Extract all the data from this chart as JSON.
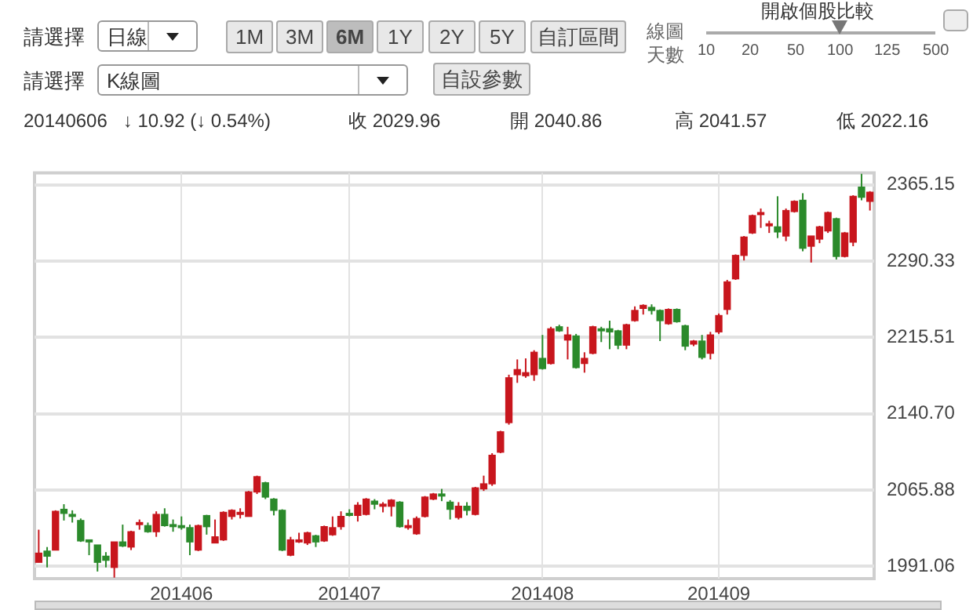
{
  "chart_data": {
    "type": "candlestick",
    "categories": [
      null,
      null,
      null,
      null,
      null,
      null,
      null,
      null,
      null,
      null,
      null,
      null,
      null,
      null,
      null,
      null,
      null,
      "201406",
      null,
      null,
      null,
      null,
      null,
      null,
      null,
      null,
      null,
      null,
      null,
      null,
      null,
      null,
      null,
      null,
      null,
      null,
      null,
      "201407",
      null,
      null,
      null,
      null,
      null,
      null,
      null,
      null,
      null,
      null,
      null,
      null,
      null,
      null,
      null,
      null,
      null,
      null,
      null,
      null,
      null,
      null,
      "201408",
      null,
      null,
      null,
      null,
      null,
      null,
      null,
      null,
      null,
      null,
      null,
      null,
      null,
      null,
      null,
      null,
      null,
      null,
      null,
      null,
      "201409",
      null,
      null,
      null,
      null,
      null,
      null,
      null,
      null,
      null,
      null,
      null,
      null,
      null,
      null,
      null,
      null,
      null,
      null
    ],
    "ohlc": [
      [
        1995,
        2027,
        1995,
        2004
      ],
      [
        2006,
        2010,
        1990,
        2001
      ],
      [
        2007,
        2046,
        2007,
        2045
      ],
      [
        2047,
        2052,
        2036,
        2043
      ],
      [
        2042,
        2046,
        2034,
        2040
      ],
      [
        2036,
        2038,
        2015,
        2016
      ],
      [
        2017,
        2017,
        2002,
        2015
      ],
      [
        2012,
        2012,
        1986,
        1995
      ],
      [
        2001,
        2005,
        1990,
        1997
      ],
      [
        1990,
        2015,
        1980,
        2015
      ],
      [
        2015,
        2032,
        2010,
        2011
      ],
      [
        2010,
        2026,
        2007,
        2025
      ],
      [
        2032,
        2037,
        2027,
        2034
      ],
      [
        2031,
        2034,
        2024,
        2025
      ],
      [
        2025,
        2045,
        2020,
        2042
      ],
      [
        2042,
        2048,
        2030,
        2031
      ],
      [
        2032,
        2037,
        2025,
        2030
      ],
      [
        2031,
        2040,
        2027,
        2029
      ],
      [
        2029,
        2032,
        2002,
        2015
      ],
      [
        2007,
        2032,
        2006,
        2031
      ],
      [
        2040.86,
        2041.57,
        2022.16,
        2029.96
      ],
      [
        2014,
        2037,
        2014,
        2020
      ],
      [
        2017,
        2045,
        2016,
        2044
      ],
      [
        2040,
        2047,
        2037,
        2046
      ],
      [
        2042,
        2048,
        2038,
        2044
      ],
      [
        2040,
        2065,
        2040,
        2064
      ],
      [
        2064,
        2080,
        2062,
        2079
      ],
      [
        2073,
        2074,
        2057,
        2059
      ],
      [
        2057,
        2058,
        2041,
        2046
      ],
      [
        2046,
        2047,
        2006,
        2007
      ],
      [
        2002,
        2020,
        2001,
        2017
      ],
      [
        2015,
        2024,
        2014,
        2017
      ],
      [
        2014,
        2025,
        2012,
        2024
      ],
      [
        2021,
        2022,
        2010,
        2015
      ],
      [
        2016,
        2031,
        2015,
        2030
      ],
      [
        2022,
        2040,
        2021,
        2029
      ],
      [
        2030,
        2045,
        2027,
        2040
      ],
      [
        2043,
        2047,
        2040,
        2041
      ],
      [
        2041,
        2054,
        2035,
        2051
      ],
      [
        2042,
        2058,
        2041,
        2057
      ],
      [
        2055,
        2057,
        2047,
        2052
      ],
      [
        2050,
        2054,
        2044,
        2052
      ],
      [
        2050,
        2057,
        2040,
        2056
      ],
      [
        2054,
        2055,
        2029,
        2030
      ],
      [
        2029,
        2037,
        2027,
        2031
      ],
      [
        2023,
        2040,
        2022,
        2038
      ],
      [
        2040,
        2060,
        2039,
        2059
      ],
      [
        2057,
        2063,
        2056,
        2062
      ],
      [
        2062,
        2067,
        2055,
        2060
      ],
      [
        2054,
        2056,
        2037,
        2047
      ],
      [
        2039,
        2054,
        2037,
        2050
      ],
      [
        2050,
        2054,
        2041,
        2046
      ],
      [
        2042,
        2069,
        2041,
        2068
      ],
      [
        2067,
        2080,
        2065,
        2072
      ],
      [
        2072,
        2102,
        2070,
        2100
      ],
      [
        2103,
        2124,
        2102,
        2123
      ],
      [
        2132,
        2179,
        2130,
        2176
      ],
      [
        2179,
        2194,
        2171,
        2184
      ],
      [
        2178,
        2195,
        2176,
        2181
      ],
      [
        2179,
        2203,
        2173,
        2201
      ],
      [
        2195,
        2218,
        2184,
        2185
      ],
      [
        2190,
        2226,
        2189,
        2224
      ],
      [
        2226,
        2228,
        2221,
        2222
      ],
      [
        2213,
        2226,
        2194,
        2218
      ],
      [
        2217,
        2219,
        2185,
        2186
      ],
      [
        2190,
        2201,
        2181,
        2195
      ],
      [
        2200,
        2227,
        2199,
        2226
      ],
      [
        2224,
        2226,
        2211,
        2222
      ],
      [
        2224,
        2232,
        2204,
        2221
      ],
      [
        2222,
        2223,
        2204,
        2208
      ],
      [
        2208,
        2229,
        2204,
        2228
      ],
      [
        2232,
        2246,
        2231,
        2242
      ],
      [
        2244,
        2248,
        2238,
        2247
      ],
      [
        2245,
        2248,
        2238,
        2242
      ],
      [
        2242,
        2243,
        2212,
        2232
      ],
      [
        2229,
        2244,
        2228,
        2243
      ],
      [
        2243,
        2244,
        2230,
        2231
      ],
      [
        2227,
        2228,
        2203,
        2207
      ],
      [
        2209,
        2213,
        2207,
        2212
      ],
      [
        2212,
        2218,
        2194,
        2196
      ],
      [
        2200,
        2221,
        2194,
        2218
      ],
      [
        2221,
        2239,
        2219,
        2237
      ],
      [
        2243,
        2272,
        2238,
        2270
      ],
      [
        2273,
        2297,
        2272,
        2296
      ],
      [
        2296,
        2315,
        2291,
        2314
      ],
      [
        2318,
        2336,
        2317,
        2335
      ],
      [
        2336,
        2342,
        2323,
        2338
      ],
      [
        2325,
        2330,
        2318,
        2327
      ],
      [
        2324,
        2354,
        2313,
        2319
      ],
      [
        2315,
        2342,
        2310,
        2340
      ],
      [
        2339,
        2350,
        2338,
        2349
      ],
      [
        2350,
        2357,
        2300,
        2303
      ],
      [
        2305,
        2315,
        2289,
        2315
      ],
      [
        2312,
        2325,
        2308,
        2324
      ],
      [
        2320,
        2339,
        2318,
        2338
      ],
      [
        2332,
        2333,
        2292,
        2295
      ],
      [
        2295,
        2319,
        2294,
        2318
      ],
      [
        2309,
        2355,
        2305,
        2354
      ],
      [
        2363,
        2376,
        2350,
        2353
      ],
      [
        2349,
        2359,
        2340,
        2358
      ]
    ],
    "colors": [
      "#c8161d",
      "#2b8a2b",
      "#c8161d",
      "#2b8a2b",
      "#2b8a2b",
      "#2b8a2b",
      "#2b8a2b",
      "#2b8a2b",
      "#2b8a2b",
      "#c8161d",
      "#2b8a2b",
      "#c8161d",
      "#c8161d",
      "#2b8a2b",
      "#c8161d",
      "#2b8a2b",
      "#2b8a2b",
      "#2b8a2b",
      "#2b8a2b",
      "#c8161d",
      "#2b8a2b",
      "#c8161d",
      "#c8161d",
      "#c8161d",
      "#c8161d",
      "#c8161d",
      "#c8161d",
      "#2b8a2b",
      "#2b8a2b",
      "#2b8a2b",
      "#c8161d",
      "#c8161d",
      "#c8161d",
      "#2b8a2b",
      "#c8161d",
      "#c8161d",
      "#c8161d",
      "#2b8a2b",
      "#c8161d",
      "#c8161d",
      "#2b8a2b",
      "#c8161d",
      "#c8161d",
      "#2b8a2b",
      "#c8161d",
      "#c8161d",
      "#c8161d",
      "#c8161d",
      "#2b8a2b",
      "#2b8a2b",
      "#c8161d",
      "#2b8a2b",
      "#c8161d",
      "#c8161d",
      "#c8161d",
      "#c8161d",
      "#c8161d",
      "#c8161d",
      "#c8161d",
      "#c8161d",
      "#2b8a2b",
      "#c8161d",
      "#2b8a2b",
      "#c8161d",
      "#2b8a2b",
      "#c8161d",
      "#c8161d",
      "#2b8a2b",
      "#2b8a2b",
      "#2b8a2b",
      "#c8161d",
      "#c8161d",
      "#c8161d",
      "#2b8a2b",
      "#2b8a2b",
      "#c8161d",
      "#2b8a2b",
      "#2b8a2b",
      "#c8161d",
      "#2b8a2b",
      "#c8161d",
      "#c8161d",
      "#c8161d",
      "#c8161d",
      "#c8161d",
      "#c8161d",
      "#c8161d",
      "#c8161d",
      "#2b8a2b",
      "#c8161d",
      "#c8161d",
      "#2b8a2b",
      "#c8161d",
      "#c8161d",
      "#c8161d",
      "#2b8a2b",
      "#c8161d",
      "#c8161d",
      "#2b8a2b",
      "#c8161d"
    ],
    "ylim": [
      1979,
      2377
    ],
    "yticks": [
      1991.06,
      2065.88,
      {
        "value": 2140.7,
        "label": "2140.70"
      },
      2215.51,
      2290.33,
      2365.15
    ],
    "grid": true,
    "legend": false,
    "annotations": [
      "請選擇",
      "日線",
      "1M",
      "3M",
      "6M",
      "1Y",
      "2Y",
      "5Y",
      "自訂區間",
      "線圖",
      "10",
      "20",
      "50",
      "100",
      "125",
      "500",
      "請選擇",
      "K線圖",
      "自設參數",
      "20140606   ↓ 10.92 (↓ 0.54%)",
      "收 2029.96",
      "開 2040.86",
      "高 2041.57",
      "低 2022.16",
      "開啟個股比較",
      "天數"
    ]
  }
}
